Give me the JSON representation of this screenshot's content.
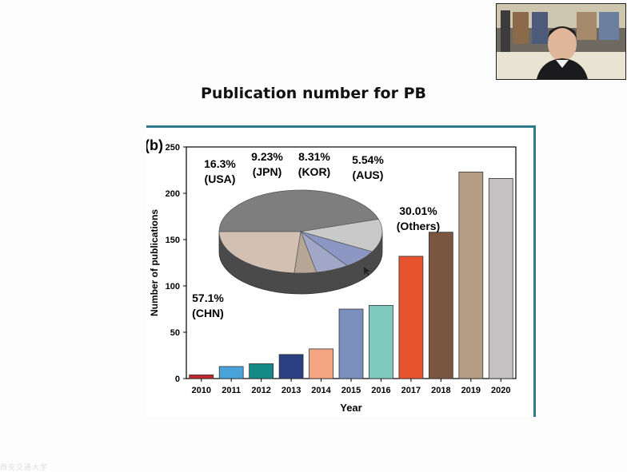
{
  "slide": {
    "title": "Publication number for PB",
    "figure_label": "(b)"
  },
  "chart_data": {
    "type": "bar",
    "categories": [
      "2010",
      "2011",
      "2012",
      "2013",
      "2014",
      "2015",
      "2016",
      "2017",
      "2018",
      "2019",
      "2020"
    ],
    "values": [
      4,
      13,
      16,
      26,
      32,
      75,
      79,
      132,
      158,
      223,
      216
    ],
    "colors": [
      "#c0272d",
      "#4aa3d8",
      "#138a86",
      "#2b3f80",
      "#f4a582",
      "#7b8fbe",
      "#7fc9be",
      "#e8532f",
      "#7a5640",
      "#b59c84",
      "#c4c1c3"
    ],
    "xlabel": "Year",
    "ylabel": "Number of publications",
    "ylim": [
      0,
      250
    ],
    "yticks": [
      0,
      50,
      100,
      150,
      200,
      250
    ],
    "inset_pie": {
      "type": "pie",
      "slices": [
        {
          "label": "CHN",
          "pct_text": "57.1%",
          "value": 57.1,
          "color": "#7e7e7e"
        },
        {
          "label": "USA",
          "pct_text": "16.3%",
          "value": 16.3,
          "color": "#c9c9c9"
        },
        {
          "label": "JPN",
          "pct_text": "9.23%",
          "value": 9.23,
          "color": "#8c98c3"
        },
        {
          "label": "KOR",
          "pct_text": "8.31%",
          "value": 8.31,
          "color": "#a1a7c6"
        },
        {
          "label": "AUS",
          "pct_text": "5.54%",
          "value": 5.54,
          "color": "#b7a595"
        },
        {
          "label": "Others",
          "pct_text": "30.01%",
          "value": 30.01,
          "color": "#d2c0b3"
        }
      ]
    }
  },
  "webcam": {
    "name": "presenter-video"
  },
  "footer": {
    "text": "西安交通大学"
  }
}
